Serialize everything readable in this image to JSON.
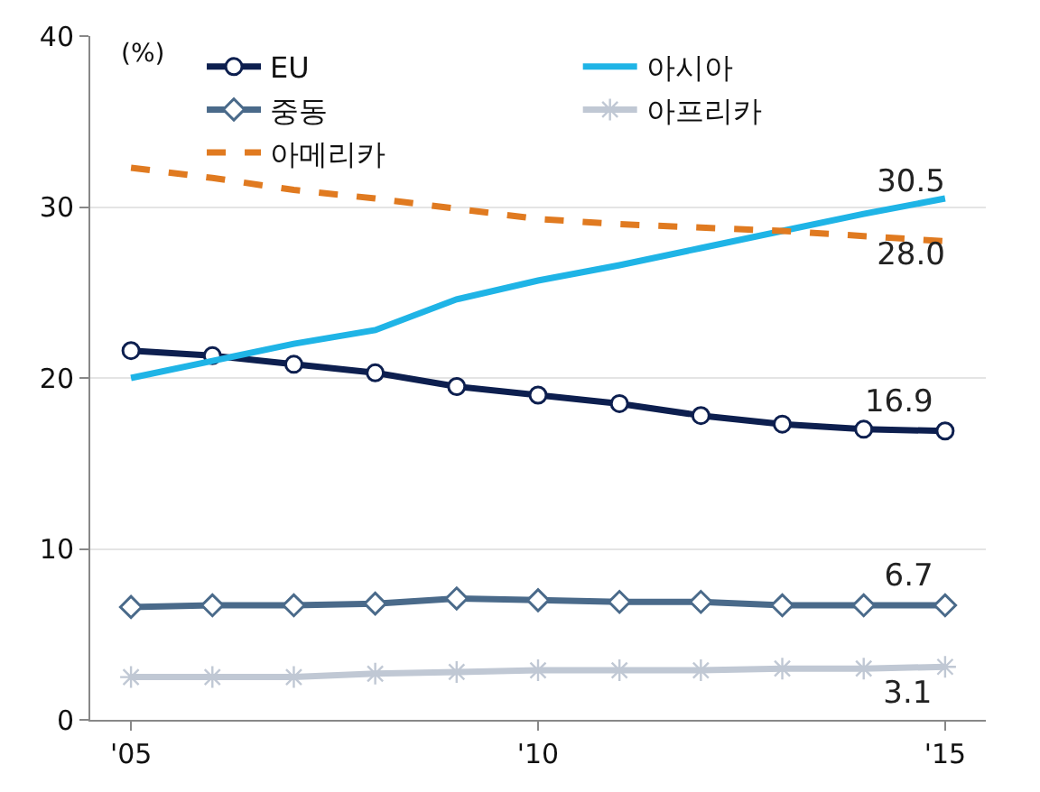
{
  "chart_data": {
    "type": "line",
    "ylabel": "(%)",
    "categories": [
      "'05",
      null,
      null,
      null,
      null,
      "'10",
      null,
      null,
      null,
      null,
      "'15"
    ],
    "ylim": [
      0,
      40
    ],
    "yticks": [
      0,
      10,
      20,
      30,
      40
    ],
    "grid": "y",
    "legend": "top",
    "series": [
      {
        "name": "EU",
        "color": "#0d1f4f",
        "marker": "circle",
        "line_style": "solid",
        "values": [
          21.6,
          21.3,
          20.8,
          20.3,
          19.5,
          19.0,
          18.5,
          17.8,
          17.3,
          17.0,
          16.9
        ],
        "value_labels": [
          null,
          null,
          null,
          null,
          null,
          null,
          null,
          null,
          null,
          null,
          "16.9"
        ]
      },
      {
        "name": "아시아",
        "color": "#1fb4e6",
        "marker": "none",
        "line_style": "solid",
        "values": [
          20.0,
          21.0,
          22.0,
          22.8,
          24.6,
          25.7,
          26.6,
          27.6,
          28.6,
          29.6,
          30.5
        ],
        "value_labels": [
          null,
          null,
          null,
          null,
          null,
          null,
          null,
          null,
          null,
          null,
          "30.5"
        ]
      },
      {
        "name": "중동",
        "color": "#4a6a8a",
        "marker": "diamond",
        "line_style": "solid",
        "values": [
          6.6,
          6.7,
          6.7,
          6.8,
          7.1,
          7.0,
          6.9,
          6.9,
          6.7,
          6.7,
          6.7
        ],
        "value_labels": [
          null,
          null,
          null,
          null,
          null,
          null,
          null,
          null,
          null,
          null,
          "6.7"
        ]
      },
      {
        "name": "아프리카",
        "color": "#c0c8d4",
        "marker": "cross",
        "line_style": "solid",
        "values": [
          2.5,
          2.5,
          2.5,
          2.7,
          2.8,
          2.9,
          2.9,
          2.9,
          3.0,
          3.0,
          3.1
        ],
        "value_labels": [
          null,
          null,
          null,
          null,
          null,
          null,
          null,
          null,
          null,
          null,
          "3.1"
        ]
      },
      {
        "name": "아메리카",
        "color": "#e07a20",
        "marker": "none",
        "line_style": "dashed",
        "values": [
          32.3,
          31.7,
          31.0,
          30.5,
          29.9,
          29.3,
          29.0,
          28.8,
          28.6,
          28.3,
          28.0
        ],
        "value_labels": [
          null,
          null,
          null,
          null,
          null,
          null,
          null,
          null,
          null,
          null,
          "28.0"
        ]
      }
    ]
  }
}
